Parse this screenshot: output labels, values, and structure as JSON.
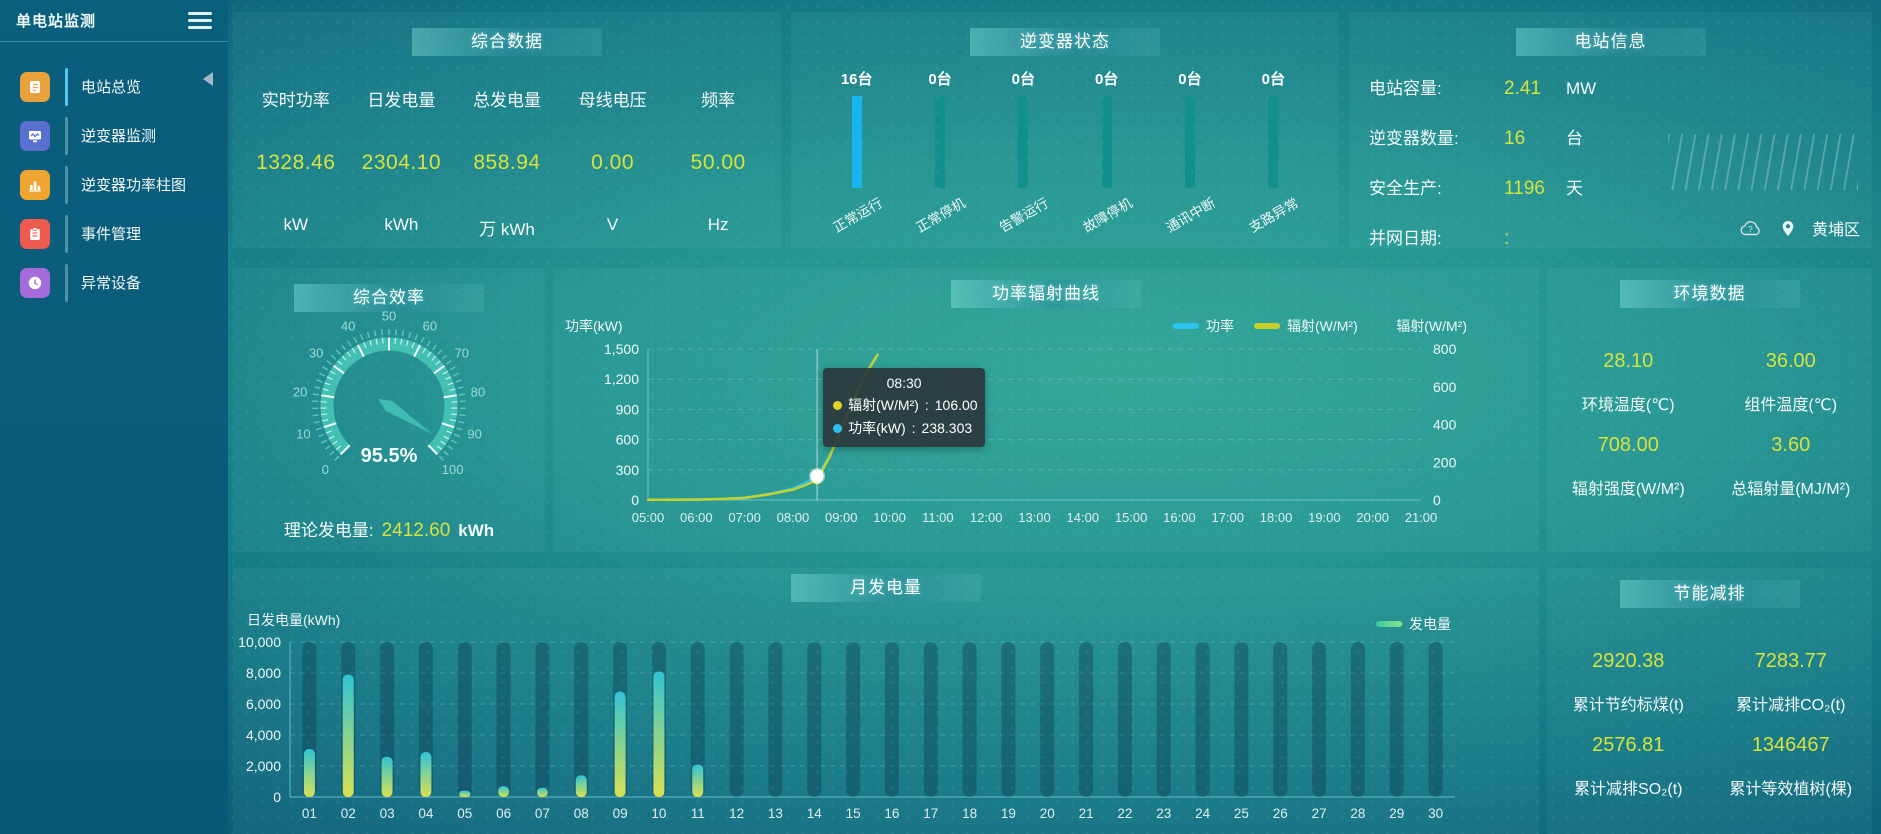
{
  "sidebar": {
    "title": "单电站监测",
    "items": [
      {
        "label": "电站总览",
        "icon": "station-overview-icon",
        "color": "#e9a23b",
        "active": true
      },
      {
        "label": "逆变器监测",
        "icon": "inverter-monitor-icon",
        "color": "#5a6fd0",
        "active": false
      },
      {
        "label": "逆变器功率柱图",
        "icon": "inverter-power-bar-icon",
        "color": "#efa530",
        "active": false
      },
      {
        "label": "事件管理",
        "icon": "event-management-icon",
        "color": "#ee5a4f",
        "active": false
      },
      {
        "label": "异常设备",
        "icon": "abnormal-device-icon",
        "color": "#a66bdb",
        "active": false
      }
    ]
  },
  "summary_panel": {
    "title": "综合数据",
    "metrics": [
      {
        "label": "实时功率",
        "value": "1328.46",
        "unit": "kW"
      },
      {
        "label": "日发电量",
        "value": "2304.10",
        "unit": "kWh"
      },
      {
        "label": "总发电量",
        "value": "858.94",
        "unit": "万 kWh"
      },
      {
        "label": "母线电压",
        "value": "0.00",
        "unit": "V"
      },
      {
        "label": "频率",
        "value": "50.00",
        "unit": "Hz"
      }
    ]
  },
  "inverter_status_panel": {
    "title": "逆变器状态",
    "statuses": [
      {
        "count": "16台",
        "label": "正常运行",
        "highlight": true
      },
      {
        "count": "0台",
        "label": "正常停机",
        "highlight": false
      },
      {
        "count": "0台",
        "label": "告警运行",
        "highlight": false
      },
      {
        "count": "0台",
        "label": "故障停机",
        "highlight": false
      },
      {
        "count": "0台",
        "label": "通讯中断",
        "highlight": false
      },
      {
        "count": "0台",
        "label": "支路异常",
        "highlight": false
      }
    ]
  },
  "station_info_panel": {
    "title": "电站信息",
    "rows": [
      {
        "label": "电站容量:",
        "value": "2.41",
        "unit": "MW"
      },
      {
        "label": "逆变器数量:",
        "value": "16",
        "unit": "台"
      },
      {
        "label": "安全生产:",
        "value": "1196",
        "unit": "天"
      },
      {
        "label": "并网日期:",
        "value": ":",
        "unit": ""
      }
    ],
    "location": "黄埔区"
  },
  "efficiency_panel": {
    "title": "综合效率",
    "gauge": {
      "min": 0,
      "max": 100,
      "value": 95.5,
      "display": "95.5%"
    },
    "footer": {
      "label": "理论发电量:",
      "value": "2412.60",
      "unit": "kWh"
    }
  },
  "environment_panel": {
    "title": "环境数据",
    "items": [
      {
        "value": "28.10",
        "label": "环境温度(℃)"
      },
      {
        "value": "36.00",
        "label": "组件温度(℃)"
      },
      {
        "value": "708.00",
        "label": "辐射强度(W/M²)"
      },
      {
        "value": "3.60",
        "label": "总辐射量(MJ/M²)"
      }
    ]
  },
  "energy_saving_panel": {
    "title": "节能减排",
    "items": [
      {
        "value": "2920.38",
        "label": "累计节约标煤(t)"
      },
      {
        "value": "7283.77",
        "label": "累计减排CO₂(t)"
      },
      {
        "value": "2576.81",
        "label": "累计减排SO₂(t)"
      },
      {
        "value": "1346467",
        "label": "累计等效植树(棵)"
      }
    ]
  },
  "chart_data": [
    {
      "type": "line",
      "title": "功率辐射曲线",
      "legend": [
        {
          "name": "功率",
          "color": "#2cc3f2"
        },
        {
          "name": "辐射(W/M²)",
          "color": "#c6d22b"
        }
      ],
      "y_axis_left": {
        "name": "功率(kW)",
        "max": 1500,
        "ticks": [
          "1,500",
          "1,200",
          "900",
          "600",
          "300",
          "0"
        ]
      },
      "y_axis_right": {
        "name": "辐射(W/M²)",
        "max": 800,
        "ticks": [
          "800",
          "600",
          "400",
          "200",
          "0"
        ]
      },
      "x_ticks": [
        "05:00",
        "06:00",
        "07:00",
        "08:00",
        "09:00",
        "10:00",
        "11:00",
        "12:00",
        "13:00",
        "14:00",
        "15:00",
        "16:00",
        "17:00",
        "18:00",
        "19:00",
        "20:00",
        "21:00"
      ],
      "x_range": [
        5,
        21
      ],
      "series": [
        {
          "name": "功率",
          "unit": "kW",
          "axis": "left",
          "color": "#2cc3f2",
          "points": [
            [
              5,
              2
            ],
            [
              5.5,
              3
            ],
            [
              6,
              5
            ],
            [
              6.5,
              10
            ],
            [
              7,
              22
            ],
            [
              7.5,
              60
            ],
            [
              8,
              115
            ],
            [
              8.25,
              168
            ],
            [
              8.5,
              238.3
            ],
            [
              8.75,
              430
            ],
            [
              9,
              700
            ],
            [
              9.25,
              990
            ],
            [
              9.5,
              1240
            ],
            [
              9.75,
              1440
            ]
          ]
        },
        {
          "name": "辐射(W/M²)",
          "unit": "W/M²",
          "axis": "right",
          "color": "#c6d22b",
          "points": [
            [
              5,
              1
            ],
            [
              5.5,
              1
            ],
            [
              6,
              2
            ],
            [
              6.5,
              5
            ],
            [
              7,
              11
            ],
            [
              7.5,
              30
            ],
            [
              8,
              55
            ],
            [
              8.25,
              78
            ],
            [
              8.5,
              106
            ],
            [
              8.75,
              225
            ],
            [
              9,
              370
            ],
            [
              9.25,
              530
            ],
            [
              9.5,
              665
            ],
            [
              9.75,
              770
            ]
          ]
        }
      ],
      "tooltip": {
        "time": "08:30",
        "x_value": 8.5,
        "rows": [
          {
            "name": "辐射(W/M²)",
            "value": "106.00",
            "color": "#e3d427"
          },
          {
            "name": "功率(kW)",
            "value": "238.303",
            "color": "#2cc3f2"
          }
        ]
      }
    },
    {
      "type": "bar",
      "title": "月发电量",
      "ylabel": "日发电量(kWh)",
      "legend": "发电量",
      "ymax": 10000,
      "yticks": [
        "10,000",
        "8,000",
        "6,000",
        "4,000",
        "2,000",
        "0"
      ],
      "categories": [
        "01",
        "02",
        "03",
        "04",
        "05",
        "06",
        "07",
        "08",
        "09",
        "10",
        "11",
        "12",
        "13",
        "14",
        "15",
        "16",
        "17",
        "18",
        "19",
        "20",
        "21",
        "22",
        "23",
        "24",
        "25",
        "26",
        "27",
        "28",
        "29",
        "30"
      ],
      "values": [
        3100,
        7900,
        2600,
        2900,
        400,
        700,
        600,
        1400,
        6800,
        8100,
        2100,
        0,
        0,
        0,
        0,
        0,
        0,
        0,
        0,
        0,
        0,
        0,
        0,
        0,
        0,
        0,
        0,
        0,
        0,
        0
      ]
    }
  ]
}
